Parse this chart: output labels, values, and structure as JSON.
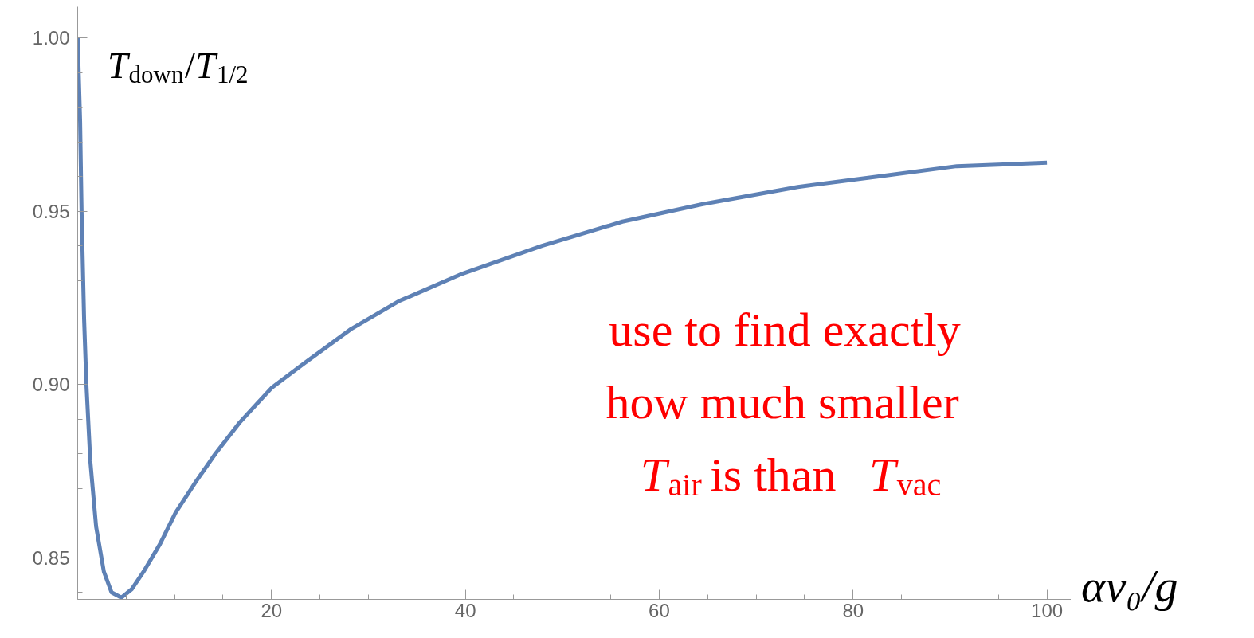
{
  "chart_data": {
    "type": "line",
    "ylabel": "T$_{down}$/T$_{1/2}$",
    "xlabel": "αv₀/g",
    "x": [
      0.0,
      0.25,
      0.4,
      0.66,
      0.9,
      1.3,
      1.9,
      2.7,
      3.5,
      4.5,
      5.6,
      6.8,
      8.5,
      10.1,
      12.2,
      14.2,
      16.7,
      20,
      23.3,
      28.2,
      33.1,
      39.7,
      47.9,
      56.2,
      64.4,
      74.3,
      82.5,
      90.7,
      100
    ],
    "series": [
      {
        "color": "#5e81b5",
        "values": [
          1.0,
          0.976,
          0.95,
          0.919,
          0.9,
          0.878,
          0.859,
          0.846,
          0.84,
          0.8385,
          0.841,
          0.846,
          0.854,
          0.863,
          0.872,
          0.88,
          0.889,
          0.899,
          0.906,
          0.916,
          0.924,
          0.932,
          0.94,
          0.947,
          0.952,
          0.957,
          0.96,
          0.963,
          0.964
        ]
      }
    ],
    "xlim": [
      0,
      102.5
    ],
    "ylim": [
      0.838,
      1.009
    ],
    "xticks": [
      20,
      40,
      60,
      80,
      100
    ],
    "yticks": [
      {
        "value": 0.85,
        "label": "0.85"
      },
      {
        "value": 0.9,
        "label": "0.90"
      },
      {
        "value": 0.95,
        "label": "0.95"
      },
      {
        "value": 1.0,
        "label": "1.00"
      }
    ],
    "annotations": [
      "use to find exactly\nhow much smaller\nT$_{air}$ is than T$_{vac}$"
    ],
    "grid": false,
    "marker": "none",
    "line_style": "solid"
  }
}
